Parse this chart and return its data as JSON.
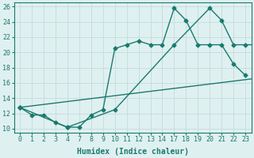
{
  "xlabel": "Humidex (Indice chaleur)",
  "bg_color": "#dff0f0",
  "grid_color": "#c8dede",
  "line_color": "#1a7a6e",
  "tick_labels": [
    "0",
    "1",
    "2",
    "3",
    "4",
    "7",
    "8",
    "9",
    "10",
    "11",
    "12",
    "13",
    "14",
    "17",
    "18",
    "19",
    "20",
    "21",
    "22",
    "23"
  ],
  "yticks": [
    10,
    12,
    14,
    16,
    18,
    20,
    22,
    24,
    26
  ],
  "line1_y": [
    12.8,
    11.8,
    11.8,
    10.8,
    10.2,
    10.2,
    11.8,
    12.5,
    20.5,
    21.0,
    21.5,
    21.0,
    21.0,
    25.8,
    24.2,
    21.0,
    21.0,
    21.0,
    18.5,
    17.0
  ],
  "line2_xi": [
    0,
    4,
    8,
    13,
    16,
    17,
    18,
    19,
    20,
    21,
    22
  ],
  "line2_y": [
    12.8,
    10.2,
    12.5,
    21.0,
    25.8,
    24.2,
    21.0,
    21.0,
    21.0,
    18.5,
    17.0
  ],
  "line3_xi": [
    0,
    22
  ],
  "line3_y": [
    12.8,
    17.0
  ],
  "ylim": [
    9.5,
    26.5
  ],
  "marker_size": 2.5,
  "linewidth": 1.0,
  "font_size_ticks": 6,
  "font_size_label": 7
}
